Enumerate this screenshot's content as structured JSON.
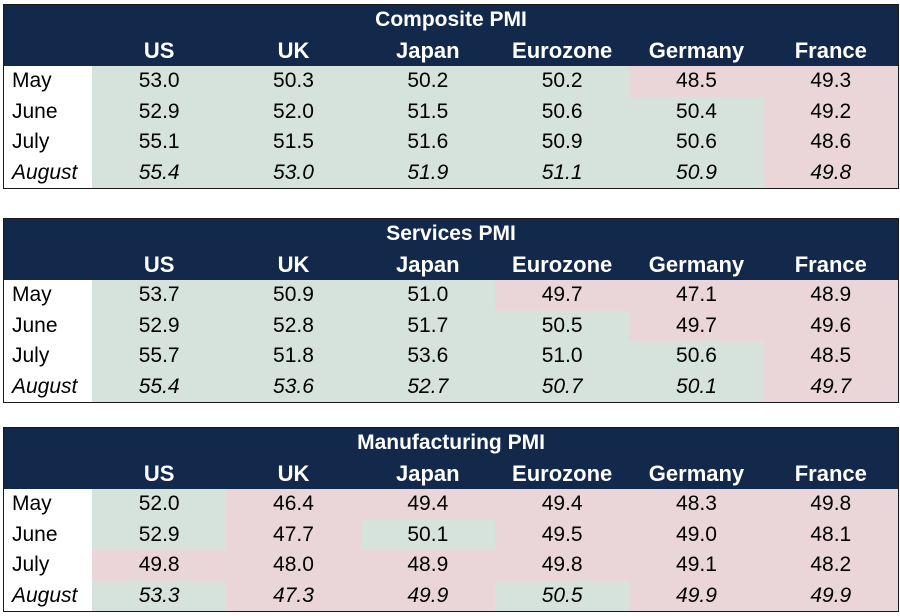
{
  "colors": {
    "header_bg": "#13294b",
    "header_text": "#ffffff",
    "above_50": "#d6e2dc",
    "below_50": "#ead6d8"
  },
  "chart_data": [
    {
      "type": "table",
      "title": "Composite PMI",
      "columns": [
        "US",
        "UK",
        "Japan",
        "Eurozone",
        "Germany",
        "France"
      ],
      "rows": [
        {
          "label": "May",
          "values": [
            "53.0",
            "50.3",
            "50.2",
            "50.2",
            "48.5",
            "49.3"
          ]
        },
        {
          "label": "June",
          "values": [
            "52.9",
            "52.0",
            "51.5",
            "50.6",
            "50.4",
            "49.2"
          ]
        },
        {
          "label": "July",
          "values": [
            "55.1",
            "51.5",
            "51.6",
            "50.9",
            "50.6",
            "48.6"
          ]
        },
        {
          "label": "August",
          "values": [
            "55.4",
            "53.0",
            "51.9",
            "51.1",
            "50.9",
            "49.8"
          ],
          "italic": true
        }
      ]
    },
    {
      "type": "table",
      "title": "Services PMI",
      "columns": [
        "US",
        "UK",
        "Japan",
        "Eurozone",
        "Germany",
        "France"
      ],
      "rows": [
        {
          "label": "May",
          "values": [
            "53.7",
            "50.9",
            "51.0",
            "49.7",
            "47.1",
            "48.9"
          ]
        },
        {
          "label": "June",
          "values": [
            "52.9",
            "52.8",
            "51.7",
            "50.5",
            "49.7",
            "49.6"
          ]
        },
        {
          "label": "July",
          "values": [
            "55.7",
            "51.8",
            "53.6",
            "51.0",
            "50.6",
            "48.5"
          ]
        },
        {
          "label": "August",
          "values": [
            "55.4",
            "53.6",
            "52.7",
            "50.7",
            "50.1",
            "49.7"
          ],
          "italic": true
        }
      ]
    },
    {
      "type": "table",
      "title": "Manufacturing PMI",
      "columns": [
        "US",
        "UK",
        "Japan",
        "Eurozone",
        "Germany",
        "France"
      ],
      "rows": [
        {
          "label": "May",
          "values": [
            "52.0",
            "46.4",
            "49.4",
            "49.4",
            "48.3",
            "49.8"
          ]
        },
        {
          "label": "June",
          "values": [
            "52.9",
            "47.7",
            "50.1",
            "49.5",
            "49.0",
            "48.1"
          ]
        },
        {
          "label": "July",
          "values": [
            "49.8",
            "48.0",
            "48.9",
            "49.8",
            "49.1",
            "48.2"
          ]
        },
        {
          "label": "August",
          "values": [
            "53.3",
            "47.3",
            "49.9",
            "50.5",
            "49.9",
            "49.9"
          ],
          "italic": true
        }
      ]
    }
  ]
}
